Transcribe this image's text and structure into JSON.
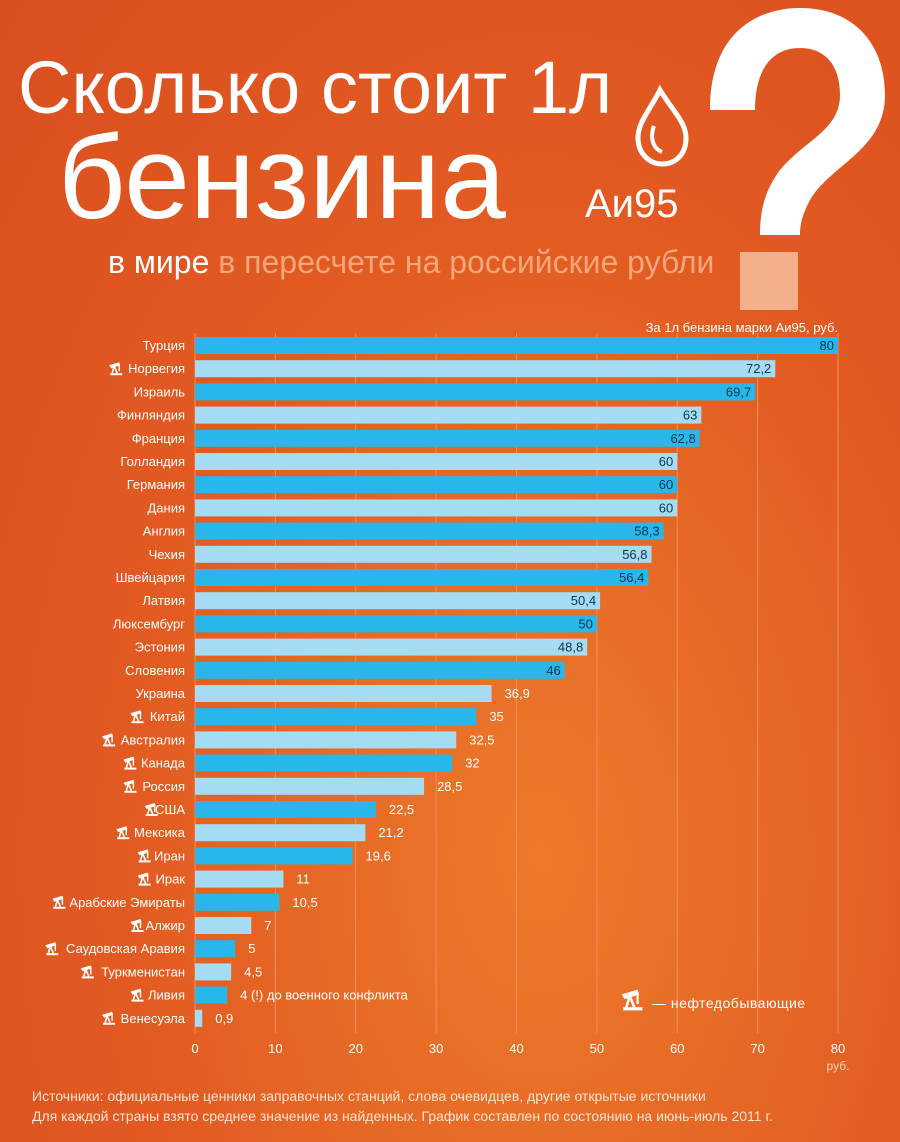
{
  "header": {
    "title_line1": "Сколько стоит 1л",
    "title_line2": "бензина",
    "grade": "Аи95",
    "subtitle_a": "в мире",
    "subtitle_b": "в пересчете на российские рубли",
    "unit_note": "За 1л бензина марки Аи95, руб."
  },
  "legend": {
    "text": "— нефтедобывающие",
    "icon": "oil-pump-icon"
  },
  "footer": {
    "line1": "Источники: официальные ценники заправочных станций, слова очевидцев, другие открытые источники",
    "line2": "Для каждой страны взято среднее значение из найденных. График составлен по состоянию на июнь-июль 2011 г."
  },
  "colors": {
    "background": "#e25a22",
    "bar_dark": "#29b6e8",
    "bar_light": "#a6dcf3",
    "label_text": "#ffffff",
    "value_text": "#0b3550"
  },
  "chart_data": {
    "type": "bar",
    "orientation": "horizontal",
    "categories": [
      "Турция",
      "Норвегия",
      "Израиль",
      "Финляндия",
      "Франция",
      "Голландия",
      "Германия",
      "Дания",
      "Англия",
      "Чехия",
      "Швейцария",
      "Латвия",
      "Люксембург",
      "Эстония",
      "Словения",
      "Украина",
      "Китай",
      "Австралия",
      "Канада",
      "Россия",
      "США",
      "Мексика",
      "Иран",
      "Ирак",
      "Арабские Эмираты",
      "Алжир",
      "Саудовская Аравия",
      "Туркменистан",
      "Ливия",
      "Венесуэла"
    ],
    "values": [
      80,
      72.2,
      69.7,
      63,
      62.8,
      60,
      60,
      60,
      58.3,
      56.8,
      56.4,
      50.4,
      50,
      48.8,
      46,
      36.9,
      35,
      32.5,
      32,
      28.5,
      22.5,
      21.2,
      19.6,
      11,
      10.5,
      7,
      5,
      4.5,
      4,
      0.9
    ],
    "value_labels": [
      "80",
      "72,2",
      "69,7",
      "63",
      "62,8",
      "60",
      "60",
      "60",
      "58,3",
      "56,8",
      "56,4",
      "50,4",
      "50",
      "48,8",
      "46",
      "36,9",
      "35",
      "32,5",
      "32",
      "28,5",
      "22,5",
      "21,2",
      "19,6",
      "11",
      "10,5",
      "7",
      "5",
      "4,5",
      "4 (!) до военного конфликта",
      "0,9"
    ],
    "oil_producing": [
      false,
      true,
      false,
      false,
      false,
      false,
      false,
      false,
      false,
      false,
      false,
      false,
      false,
      false,
      false,
      false,
      true,
      true,
      true,
      true,
      true,
      true,
      true,
      true,
      true,
      true,
      true,
      true,
      true,
      true
    ],
    "xticks": [
      "0",
      "10",
      "20",
      "30",
      "40",
      "50",
      "60",
      "70",
      "80"
    ],
    "xunit": "руб.",
    "xlim": [
      0,
      80
    ],
    "grid": true
  }
}
